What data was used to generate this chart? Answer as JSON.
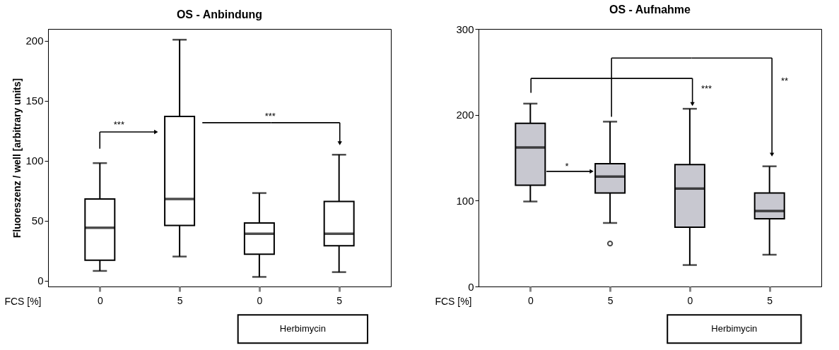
{
  "chart_data": [
    {
      "type": "box",
      "title": "OS - Anbindung",
      "xlabel": "FCS [%]",
      "ylabel": "Fluoreszenz / well [arbitrary units]",
      "categories": [
        "0",
        "5",
        "0",
        "5"
      ],
      "ylim": [
        -5,
        210
      ],
      "yticks": [
        0,
        50,
        100,
        150,
        200
      ],
      "grid": false,
      "series": [
        {
          "color": "#ffffff",
          "boxes": [
            {
              "low": 8,
              "q1": 17,
              "median": 44,
              "q3": 68,
              "high": 98
            },
            {
              "low": 20,
              "q1": 46,
              "median": 68,
              "q3": 137,
              "high": 201
            },
            {
              "low": 3,
              "q1": 22,
              "median": 39,
              "q3": 48,
              "high": 73
            },
            {
              "low": 7,
              "q1": 29,
              "median": 39,
              "q3": 66,
              "high": 105
            }
          ]
        }
      ],
      "annotations": [
        "***",
        "***",
        "Herbimycin"
      ]
    },
    {
      "type": "box",
      "title": "OS - Aufnahme",
      "xlabel": "FCS [%]",
      "categories": [
        "0",
        "5",
        "0",
        "5"
      ],
      "ylim": [
        0,
        300
      ],
      "yticks": [
        0,
        100,
        200,
        300
      ],
      "grid": false,
      "series": [
        {
          "color": "#c8c8d0",
          "boxes": [
            {
              "low": 99,
              "q1": 118,
              "median": 162,
              "q3": 190,
              "high": 213
            },
            {
              "low": 74,
              "q1": 109,
              "median": 128,
              "q3": 143,
              "high": 192,
              "outliers": [
                50
              ]
            },
            {
              "low": 25,
              "q1": 69,
              "median": 114,
              "q3": 142,
              "high": 207
            },
            {
              "low": 37,
              "q1": 79,
              "median": 88,
              "q3": 109,
              "high": 140
            }
          ]
        }
      ],
      "annotations": [
        "*",
        "***",
        "**",
        "Herbimycin"
      ]
    }
  ]
}
